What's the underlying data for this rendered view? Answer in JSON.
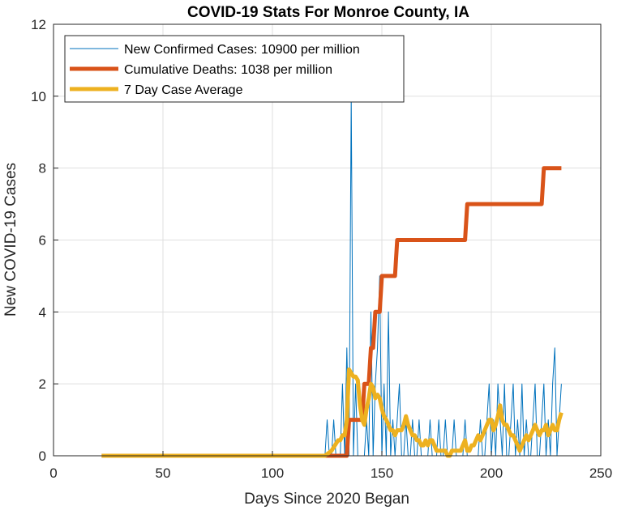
{
  "chart_data": {
    "type": "line",
    "title": "COVID-19 Stats For Monroe County, IA",
    "xlabel": "Days Since 2020 Began",
    "ylabel": "New COVID-19 Cases",
    "xlim": [
      0,
      250
    ],
    "ylim": [
      0,
      12
    ],
    "xticks": [
      0,
      50,
      100,
      150,
      200,
      250
    ],
    "yticks": [
      0,
      2,
      4,
      6,
      8,
      10,
      12
    ],
    "grid": true,
    "legend_position": "top-left",
    "series": [
      {
        "name": "New Confirmed Cases: 10900 per million",
        "color": "#0072BD",
        "style": "thin",
        "x": [
          22,
          124,
          125,
          126,
          127,
          128,
          129,
          130,
          131,
          132,
          133,
          134,
          135,
          136,
          137,
          138,
          139,
          140,
          141,
          142,
          143,
          144,
          145,
          146,
          147,
          148,
          149,
          150,
          151,
          152,
          153,
          154,
          155,
          156,
          157,
          158,
          159,
          160,
          161,
          162,
          163,
          164,
          165,
          166,
          167,
          168,
          169,
          170,
          171,
          172,
          173,
          174,
          175,
          176,
          177,
          178,
          179,
          180,
          181,
          182,
          183,
          184,
          185,
          186,
          187,
          188,
          189,
          190,
          191,
          192,
          193,
          194,
          195,
          196,
          197,
          198,
          199,
          200,
          201,
          202,
          203,
          204,
          205,
          206,
          207,
          208,
          209,
          210,
          211,
          212,
          213,
          214,
          215,
          216,
          217,
          218,
          219,
          220,
          221,
          222,
          223,
          224,
          225,
          226,
          227,
          228,
          229,
          230,
          231,
          232
        ],
        "y": [
          0,
          0,
          1,
          0,
          0,
          1,
          0,
          0,
          0,
          2,
          0,
          3,
          0,
          10,
          0,
          2,
          0,
          0,
          0,
          0,
          1,
          0,
          4,
          0,
          2,
          3,
          5,
          0,
          2,
          0,
          4,
          0,
          1,
          0,
          1,
          2,
          0,
          0,
          1,
          0,
          0,
          1,
          0,
          0,
          1,
          0,
          0,
          0,
          0,
          1,
          0,
          0,
          0,
          1,
          0,
          0,
          1,
          0,
          0,
          0,
          1,
          0,
          0,
          0,
          0,
          1,
          0,
          0,
          0,
          0,
          0,
          0,
          1,
          0,
          0,
          1,
          2,
          0,
          1,
          0,
          2,
          1,
          0,
          2,
          0,
          0,
          1,
          2,
          0,
          1,
          0,
          2,
          0,
          1,
          0,
          0,
          1,
          2,
          0,
          0,
          1,
          2,
          0,
          1,
          0,
          2,
          3,
          0,
          1,
          2
        ]
      },
      {
        "name": "Cumulative Deaths: 1038 per million",
        "color": "#D95319",
        "style": "thick",
        "x": [
          22,
          134,
          135,
          137,
          138,
          139,
          140,
          141,
          142,
          143,
          144,
          145,
          146,
          147,
          148,
          149,
          150,
          151,
          152,
          153,
          154,
          155,
          156,
          157,
          158,
          159,
          188,
          189,
          190,
          223,
          224,
          225,
          232
        ],
        "y": [
          0,
          0,
          1,
          1,
          1,
          1,
          1,
          1,
          2,
          2,
          2,
          3,
          3,
          4,
          4,
          4,
          5,
          5,
          5,
          5,
          5,
          5,
          5,
          6,
          6,
          6,
          6,
          7,
          7,
          7,
          8,
          8,
          8
        ]
      },
      {
        "name": "7 Day Case Average",
        "color": "#EDB120",
        "style": "thick",
        "x": [
          22,
          124,
          127,
          130,
          131,
          132,
          133,
          134,
          135,
          136,
          137,
          138,
          139,
          140,
          141,
          142,
          143,
          144,
          145,
          146,
          147,
          148,
          149,
          150,
          151,
          152,
          153,
          154,
          155,
          156,
          157,
          158,
          159,
          160,
          161,
          162,
          163,
          164,
          165,
          166,
          167,
          168,
          169,
          170,
          171,
          172,
          173,
          174,
          175,
          176,
          177,
          178,
          179,
          180,
          181,
          182,
          183,
          184,
          185,
          186,
          187,
          188,
          189,
          190,
          191,
          192,
          193,
          194,
          195,
          196,
          197,
          198,
          199,
          200,
          201,
          202,
          203,
          204,
          205,
          206,
          207,
          208,
          209,
          210,
          211,
          212,
          213,
          214,
          215,
          216,
          217,
          218,
          219,
          220,
          221,
          222,
          223,
          224,
          225,
          226,
          227,
          228,
          229,
          230,
          231,
          232
        ],
        "y": [
          0,
          0,
          0.14,
          0.43,
          0.43,
          0.57,
          0.57,
          1.0,
          2.4,
          2.3,
          2.2,
          2.2,
          2.1,
          1.4,
          1.0,
          0.86,
          1.3,
          1.6,
          2.0,
          1.9,
          1.6,
          1.7,
          1.6,
          1.3,
          1.1,
          1.0,
          0.86,
          0.71,
          0.71,
          0.57,
          0.71,
          0.71,
          0.71,
          0.86,
          1.1,
          0.86,
          0.71,
          0.57,
          0.57,
          0.43,
          0.43,
          0.29,
          0.29,
          0.43,
          0.29,
          0.43,
          0.43,
          0.29,
          0.14,
          0.14,
          0.14,
          0.14,
          0.14,
          0.0,
          0.0,
          0.14,
          0.14,
          0.14,
          0.14,
          0.14,
          0.29,
          0.43,
          0.14,
          0.14,
          0.29,
          0.29,
          0.43,
          0.57,
          0.43,
          0.57,
          0.71,
          0.86,
          1.0,
          1.0,
          0.71,
          0.86,
          1.1,
          1.4,
          1.0,
          0.86,
          0.86,
          0.71,
          0.57,
          0.57,
          0.43,
          0.29,
          0.14,
          0.29,
          0.43,
          0.57,
          0.43,
          0.57,
          0.71,
          0.86,
          0.71,
          0.57,
          0.71,
          0.71,
          0.86,
          0.57,
          0.71,
          0.86,
          0.71,
          0.71,
          1.0,
          1.2
        ]
      }
    ]
  }
}
